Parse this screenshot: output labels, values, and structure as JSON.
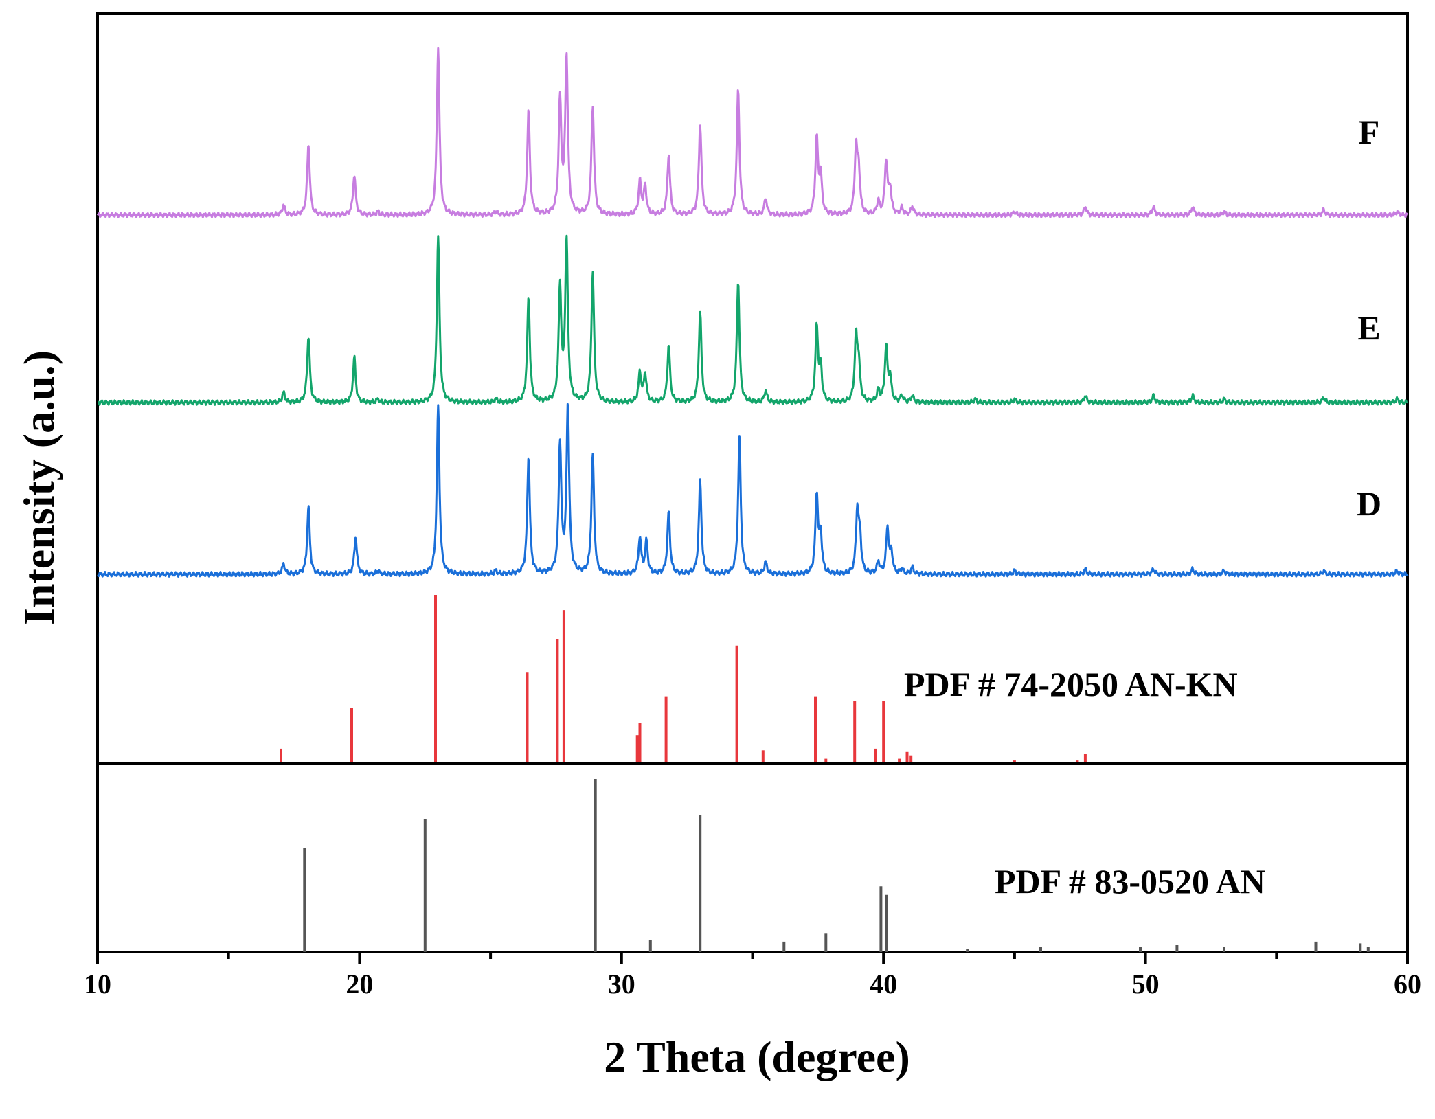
{
  "chart_data": {
    "type": "line",
    "xlabel": "2 Theta (degree)",
    "ylabel": "Intensity (a.u.)",
    "xlim": [
      10,
      60
    ],
    "xticks": [
      10,
      20,
      30,
      40,
      50,
      60
    ],
    "minor_xticks": [
      15,
      25,
      35,
      45,
      55
    ],
    "grid": false,
    "series": [
      {
        "name": "F",
        "color": "#c77de0",
        "peaks": [
          [
            17.1,
            0.06
          ],
          [
            18.05,
            0.42
          ],
          [
            19.8,
            0.24
          ],
          [
            20.7,
            0.02
          ],
          [
            23.0,
            1.0
          ],
          [
            25.2,
            0.02
          ],
          [
            26.45,
            0.62
          ],
          [
            27.65,
            0.68
          ],
          [
            27.9,
            0.94
          ],
          [
            28.9,
            0.65
          ],
          [
            30.7,
            0.2
          ],
          [
            30.9,
            0.17
          ],
          [
            31.8,
            0.36
          ],
          [
            33.0,
            0.54
          ],
          [
            34.45,
            0.75
          ],
          [
            35.5,
            0.1
          ],
          [
            37.45,
            0.45
          ],
          [
            37.6,
            0.22
          ],
          [
            38.95,
            0.38
          ],
          [
            39.05,
            0.25
          ],
          [
            39.8,
            0.08
          ],
          [
            40.1,
            0.32
          ],
          [
            40.25,
            0.15
          ],
          [
            40.7,
            0.04
          ],
          [
            41.1,
            0.05
          ],
          [
            45.0,
            0.02
          ],
          [
            47.7,
            0.05
          ],
          [
            50.3,
            0.05
          ],
          [
            51.8,
            0.05
          ],
          [
            53.0,
            0.02
          ],
          [
            56.8,
            0.03
          ],
          [
            59.6,
            0.02
          ]
        ]
      },
      {
        "name": "E",
        "color": "#13a56b",
        "peaks": [
          [
            17.1,
            0.06
          ],
          [
            18.05,
            0.4
          ],
          [
            19.8,
            0.27
          ],
          [
            20.7,
            0.02
          ],
          [
            23.0,
            1.0
          ],
          [
            25.2,
            0.02
          ],
          [
            26.45,
            0.63
          ],
          [
            27.65,
            0.68
          ],
          [
            27.9,
            0.97
          ],
          [
            28.9,
            0.78
          ],
          [
            30.7,
            0.18
          ],
          [
            30.9,
            0.17
          ],
          [
            31.8,
            0.34
          ],
          [
            33.0,
            0.54
          ],
          [
            34.45,
            0.73
          ],
          [
            35.5,
            0.07
          ],
          [
            37.45,
            0.45
          ],
          [
            37.6,
            0.2
          ],
          [
            38.95,
            0.38
          ],
          [
            39.05,
            0.22
          ],
          [
            39.8,
            0.07
          ],
          [
            40.1,
            0.33
          ],
          [
            40.25,
            0.14
          ],
          [
            40.7,
            0.04
          ],
          [
            41.1,
            0.04
          ],
          [
            43.5,
            0.02
          ],
          [
            45.0,
            0.02
          ],
          [
            47.7,
            0.04
          ],
          [
            50.3,
            0.04
          ],
          [
            51.8,
            0.04
          ],
          [
            53.0,
            0.02
          ],
          [
            56.8,
            0.03
          ],
          [
            59.6,
            0.02
          ]
        ]
      },
      {
        "name": "D",
        "color": "#1a6fd9",
        "peaks": [
          [
            17.1,
            0.06
          ],
          [
            18.05,
            0.4
          ],
          [
            19.85,
            0.22
          ],
          [
            20.7,
            0.02
          ],
          [
            23.0,
            1.0
          ],
          [
            25.2,
            0.02
          ],
          [
            26.45,
            0.7
          ],
          [
            27.65,
            0.77
          ],
          [
            27.95,
            1.0
          ],
          [
            28.9,
            0.71
          ],
          [
            30.7,
            0.22
          ],
          [
            30.95,
            0.19
          ],
          [
            31.8,
            0.37
          ],
          [
            33.0,
            0.55
          ],
          [
            34.5,
            0.81
          ],
          [
            35.5,
            0.07
          ],
          [
            37.45,
            0.47
          ],
          [
            37.6,
            0.22
          ],
          [
            39.0,
            0.37
          ],
          [
            39.1,
            0.2
          ],
          [
            39.8,
            0.07
          ],
          [
            40.15,
            0.27
          ],
          [
            40.3,
            0.12
          ],
          [
            40.7,
            0.03
          ],
          [
            41.1,
            0.04
          ],
          [
            45.0,
            0.02
          ],
          [
            47.7,
            0.03
          ],
          [
            50.3,
            0.03
          ],
          [
            51.8,
            0.03
          ],
          [
            53.0,
            0.02
          ],
          [
            56.8,
            0.02
          ],
          [
            59.6,
            0.02
          ]
        ]
      }
    ],
    "references": [
      {
        "name": "PDF # 74-2050 AN-KN",
        "color": "#e8373c",
        "sticks": [
          [
            17.0,
            0.09
          ],
          [
            19.7,
            0.33
          ],
          [
            22.9,
            1.0
          ],
          [
            25.0,
            0.01
          ],
          [
            26.4,
            0.54
          ],
          [
            27.55,
            0.74
          ],
          [
            27.8,
            0.91
          ],
          [
            30.6,
            0.17
          ],
          [
            30.7,
            0.24
          ],
          [
            31.7,
            0.4
          ],
          [
            34.4,
            0.7
          ],
          [
            35.4,
            0.08
          ],
          [
            37.4,
            0.4
          ],
          [
            37.8,
            0.03
          ],
          [
            38.9,
            0.37
          ],
          [
            39.7,
            0.09
          ],
          [
            40.0,
            0.37
          ],
          [
            40.6,
            0.03
          ],
          [
            40.9,
            0.07
          ],
          [
            41.05,
            0.05
          ],
          [
            41.8,
            0.01
          ],
          [
            42.8,
            0.01
          ],
          [
            43.6,
            0.01
          ],
          [
            45.0,
            0.02
          ],
          [
            46.5,
            0.01
          ],
          [
            46.8,
            0.01
          ],
          [
            47.4,
            0.02
          ],
          [
            47.7,
            0.06
          ],
          [
            48.6,
            0.01
          ],
          [
            49.2,
            0.01
          ]
        ]
      },
      {
        "name": "PDF # 83-0520 AN",
        "color": "#555555",
        "sticks": [
          [
            17.9,
            0.6
          ],
          [
            22.5,
            0.77
          ],
          [
            29.0,
            1.0
          ],
          [
            31.1,
            0.07
          ],
          [
            33.0,
            0.79
          ],
          [
            36.2,
            0.06
          ],
          [
            37.8,
            0.11
          ],
          [
            39.9,
            0.38
          ],
          [
            40.1,
            0.33
          ],
          [
            43.2,
            0.02
          ],
          [
            46.0,
            0.03
          ],
          [
            49.8,
            0.03
          ],
          [
            51.2,
            0.04
          ],
          [
            53.0,
            0.03
          ],
          [
            56.5,
            0.06
          ],
          [
            58.2,
            0.05
          ],
          [
            58.5,
            0.03
          ]
        ]
      }
    ]
  }
}
